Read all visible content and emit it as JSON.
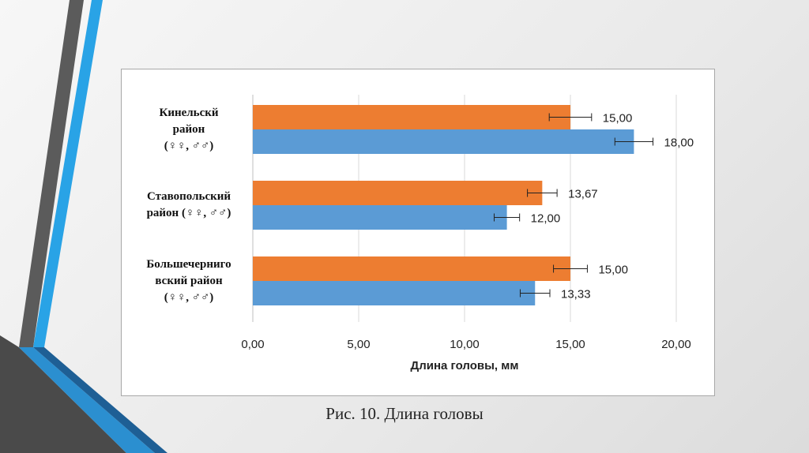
{
  "chart_data": {
    "type": "bar",
    "orientation": "horizontal",
    "categories": [
      "Кинельскй район (♀♀, ♂♂)",
      "Ставопольский район (♀♀, ♂♂)",
      "Большечерниговский район (♀♀, ♂♂)"
    ],
    "category_lines": [
      [
        "Кинельскй",
        "район",
        "(♀♀, ♂♂)"
      ],
      [
        "Ставопольский",
        "район (♀♀, ♂♂)"
      ],
      [
        "Большечерниго",
        "вский район",
        "(♀♀, ♂♂)"
      ]
    ],
    "series": [
      {
        "color": "#ED7D31",
        "values": [
          15.0,
          13.67,
          15.0
        ],
        "labels": [
          "15,00",
          "13,67",
          "15,00"
        ],
        "error": [
          1.0,
          0.7,
          0.8
        ]
      },
      {
        "color": "#5B9BD5",
        "values": [
          18.0,
          12.0,
          13.33
        ],
        "labels": [
          "18,00",
          "12,00",
          "13,33"
        ],
        "error": [
          0.9,
          0.6,
          0.7
        ]
      }
    ],
    "xlim": [
      0,
      20
    ],
    "xticks": [
      0,
      5,
      10,
      15,
      20
    ],
    "xtick_labels": [
      "0,00",
      "5,00",
      "10,00",
      "15,00",
      "20,00"
    ],
    "xlabel": "Длина головы, мм",
    "title": "",
    "grid": true
  },
  "caption": "Рис. 10. Длина головы",
  "colors": {
    "slide_stripe_dark": "#5a5a5a",
    "slide_stripe_blue": "#29a3e6",
    "slide_stripe_navy": "#1e5f95"
  }
}
